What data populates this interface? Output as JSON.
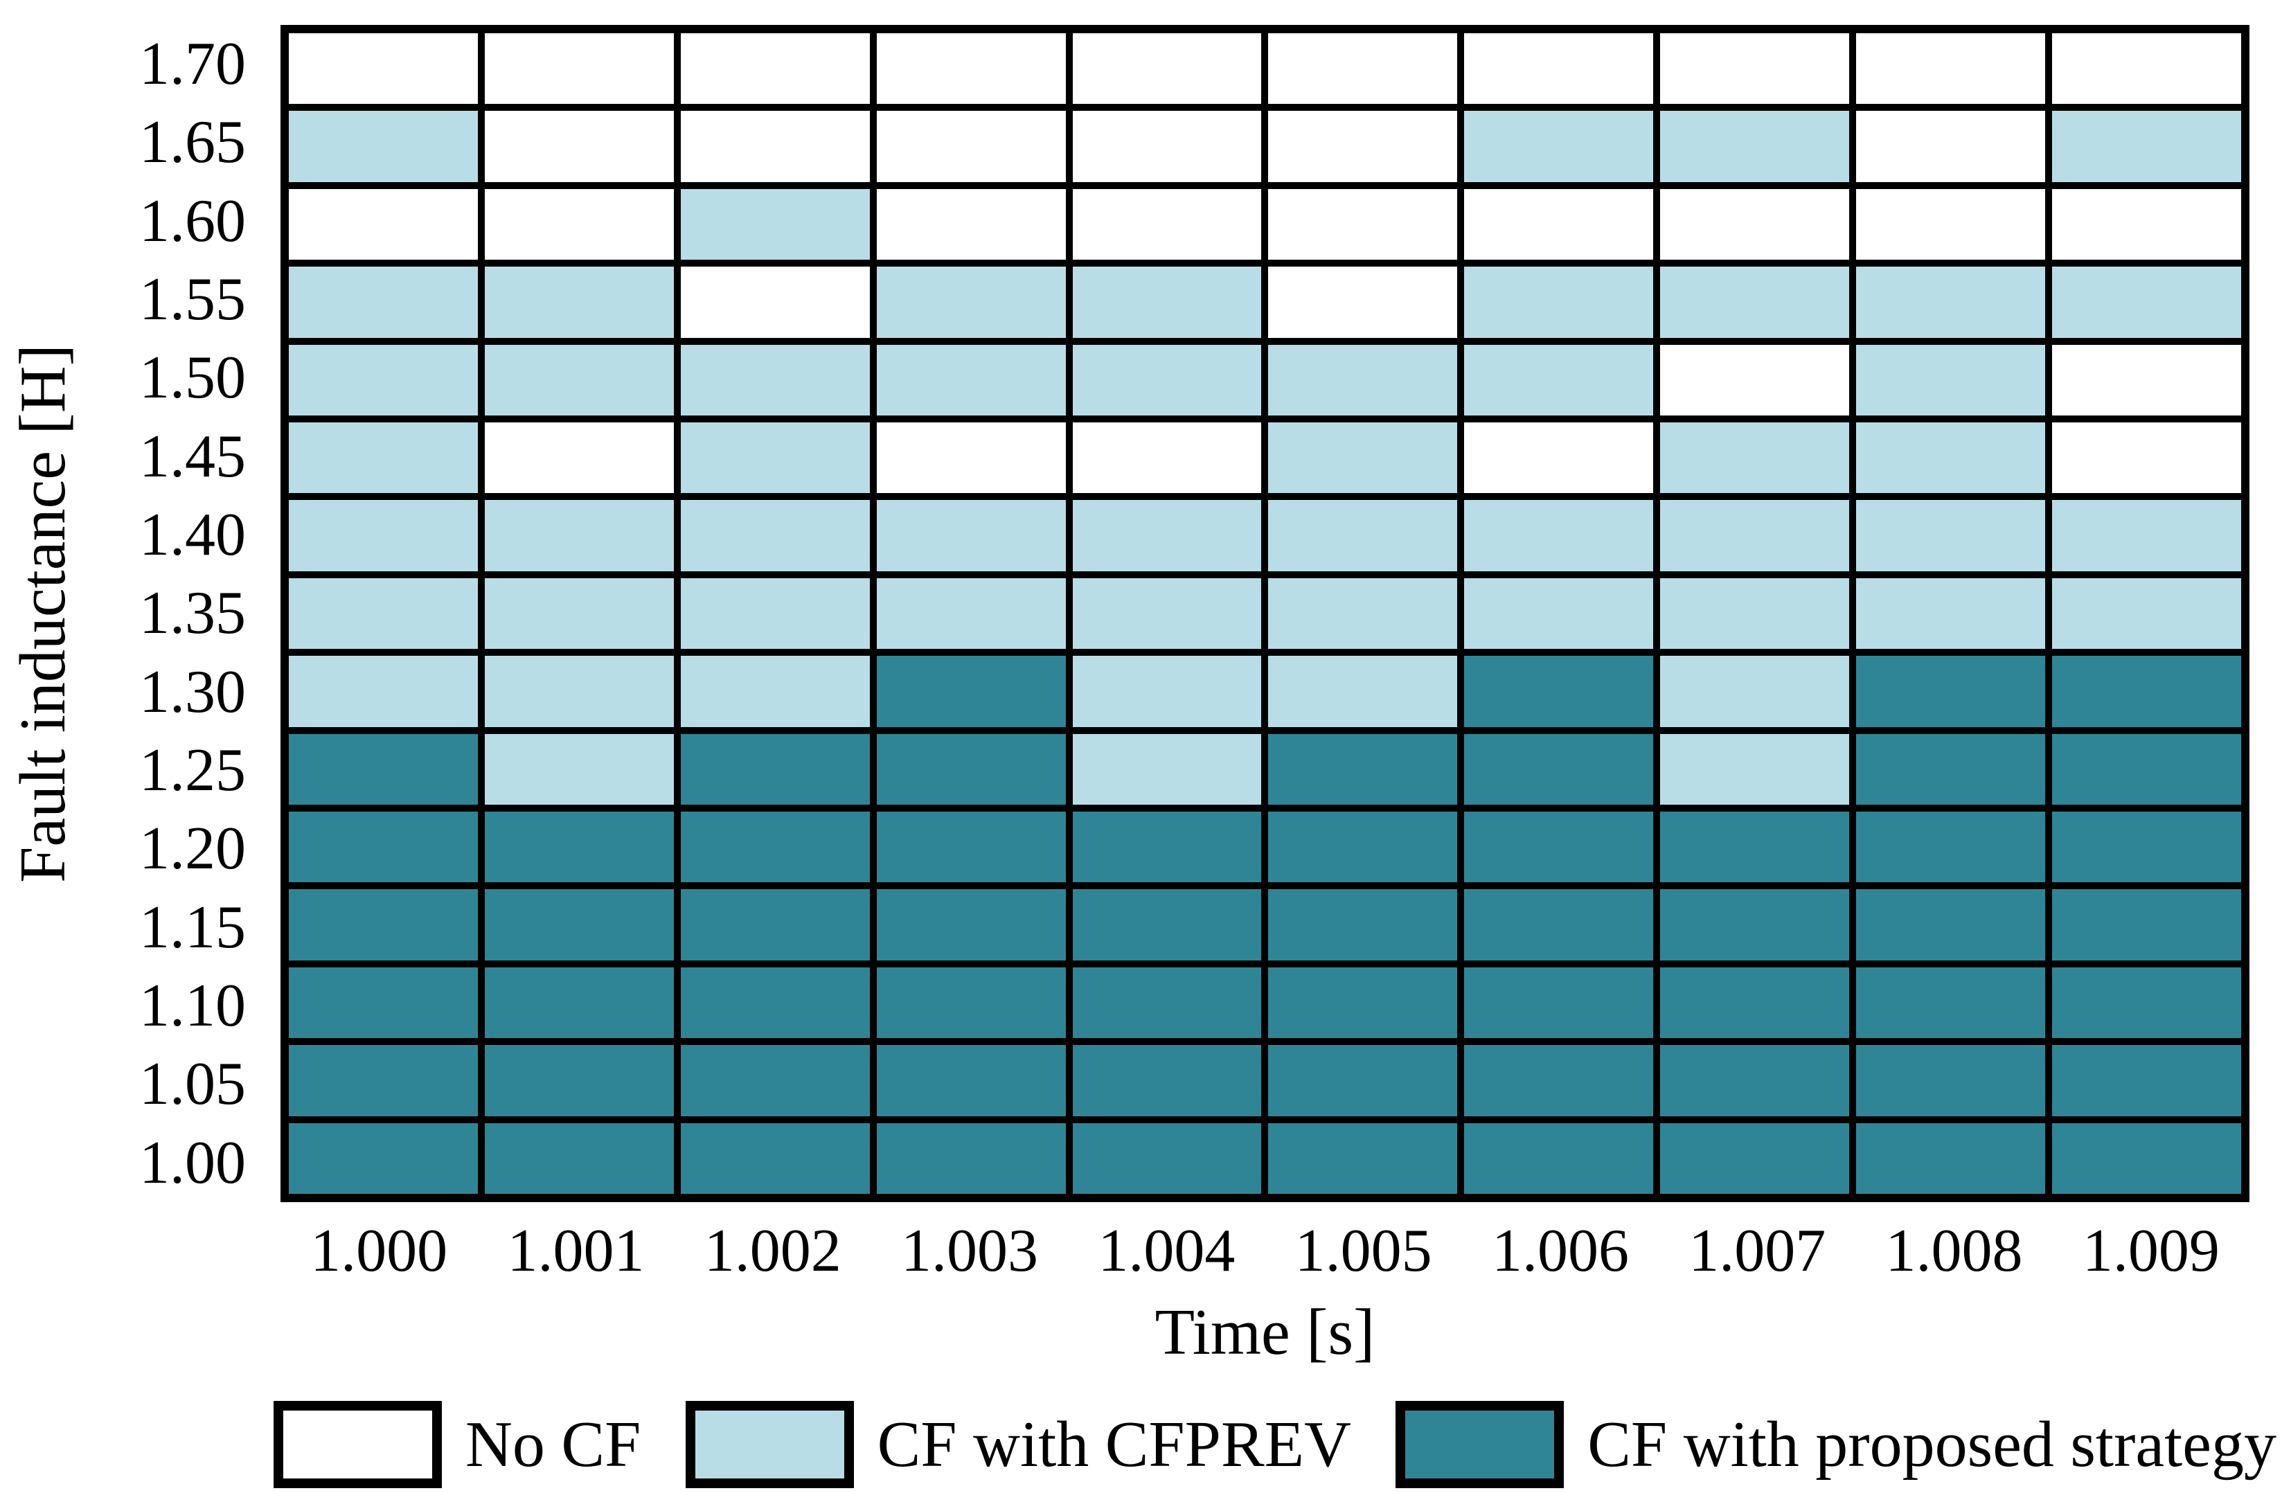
{
  "chart_data": {
    "type": "heatmap",
    "title": "",
    "xlabel": "Time [s]",
    "ylabel": "Fault inductance [H]",
    "x_categories": [
      "1.000",
      "1.001",
      "1.002",
      "1.003",
      "1.004",
      "1.005",
      "1.006",
      "1.007",
      "1.008",
      "1.009"
    ],
    "y_categories_top_to_bottom": [
      "1.70",
      "1.65",
      "1.60",
      "1.55",
      "1.50",
      "1.45",
      "1.40",
      "1.35",
      "1.30",
      "1.25",
      "1.20",
      "1.15",
      "1.10",
      "1.05",
      "1.00"
    ],
    "value_codes": {
      "0": "No CF",
      "1": "CF with CFPREV",
      "2": "CF with proposed strategy"
    },
    "grid_rows_top_to_bottom": [
      [
        0,
        0,
        0,
        0,
        0,
        0,
        0,
        0,
        0,
        0
      ],
      [
        1,
        0,
        0,
        0,
        0,
        0,
        1,
        1,
        0,
        1
      ],
      [
        0,
        0,
        1,
        0,
        0,
        0,
        0,
        0,
        0,
        0
      ],
      [
        1,
        1,
        0,
        1,
        1,
        0,
        1,
        1,
        1,
        1
      ],
      [
        1,
        1,
        1,
        1,
        1,
        1,
        1,
        0,
        1,
        0
      ],
      [
        1,
        0,
        1,
        0,
        0,
        1,
        0,
        1,
        1,
        0
      ],
      [
        1,
        1,
        1,
        1,
        1,
        1,
        1,
        1,
        1,
        1
      ],
      [
        1,
        1,
        1,
        1,
        1,
        1,
        1,
        1,
        1,
        1
      ],
      [
        1,
        1,
        1,
        2,
        1,
        1,
        2,
        1,
        2,
        2
      ],
      [
        2,
        1,
        2,
        2,
        1,
        2,
        2,
        1,
        2,
        2
      ],
      [
        2,
        2,
        2,
        2,
        2,
        2,
        2,
        2,
        2,
        2
      ],
      [
        2,
        2,
        2,
        2,
        2,
        2,
        2,
        2,
        2,
        2
      ],
      [
        2,
        2,
        2,
        2,
        2,
        2,
        2,
        2,
        2,
        2
      ],
      [
        2,
        2,
        2,
        2,
        2,
        2,
        2,
        2,
        2,
        2
      ],
      [
        2,
        2,
        2,
        2,
        2,
        2,
        2,
        2,
        2,
        2
      ]
    ],
    "colors": {
      "no_cf": "#ffffff",
      "cf_with_cfprev": "#b9dde6",
      "cf_with_proposed": "#2f8596",
      "grid_line": "#000000"
    },
    "legend_position": "bottom",
    "legend": [
      {
        "label": "No CF",
        "value": 0
      },
      {
        "label": "CF with CFPREV",
        "value": 1
      },
      {
        "label": "CF with proposed strategy",
        "value": 2
      }
    ],
    "axis_ranges": {
      "x": [
        "1.000",
        "1.009"
      ],
      "y": [
        "1.00",
        "1.70"
      ]
    },
    "grid_on": true
  }
}
